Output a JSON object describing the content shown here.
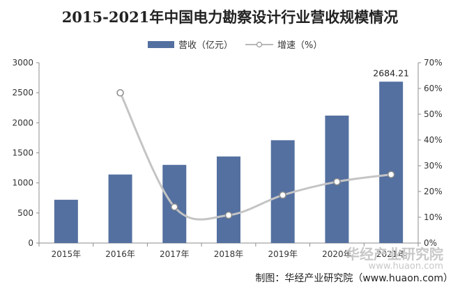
{
  "chart_data": {
    "type": "bar",
    "title": "2015-2021年中国电力勘察设计行业营收规模情况",
    "categories": [
      "2015年",
      "2016年",
      "2017年",
      "2018年",
      "2019年",
      "2020年",
      "2021年"
    ],
    "series": [
      {
        "name": "营收（亿元）",
        "type": "bar",
        "axis": "left",
        "values": [
          720,
          1140,
          1300,
          1440,
          1710,
          2120,
          2684.21
        ],
        "color": "#5470a0"
      },
      {
        "name": "增速（%）",
        "type": "line",
        "axis": "right",
        "values": [
          null,
          58.3,
          14.0,
          10.8,
          18.6,
          23.8,
          26.6
        ],
        "color": "#c4c4c4"
      }
    ],
    "data_labels": [
      {
        "category_index": 6,
        "text": "2684.21"
      }
    ],
    "y_left": {
      "min": 0,
      "max": 3000,
      "ticks": [
        "0",
        "500",
        "1000",
        "1500",
        "2000",
        "2500",
        "3000"
      ]
    },
    "y_right": {
      "min": 0,
      "max": 70,
      "ticks": [
        "0%",
        "10%",
        "20%",
        "30%",
        "40%",
        "50%",
        "60%",
        "70%"
      ]
    },
    "legend_position": "top-center",
    "grid": false
  },
  "source": "制图：华经产业研究院（www.huaon.com）",
  "watermark": {
    "brand": "华经产业研究院",
    "url": "www.huaon.com"
  }
}
